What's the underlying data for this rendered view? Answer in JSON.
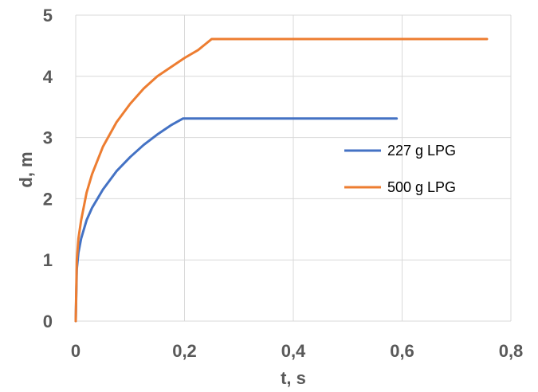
{
  "chart_data": {
    "type": "line",
    "xlabel": "t, s",
    "ylabel": "d, m",
    "xlim": [
      0,
      0.8
    ],
    "ylim": [
      0,
      5
    ],
    "x_ticks": [
      "0",
      "0,2",
      "0,4",
      "0,6",
      "0,8"
    ],
    "y_ticks": [
      "0",
      "1",
      "2",
      "3",
      "4",
      "5"
    ],
    "grid": true,
    "legend_position": "right",
    "series": [
      {
        "name": "227 g LPG",
        "color": "#4472c4",
        "x": [
          0,
          0.002,
          0.005,
          0.01,
          0.02,
          0.03,
          0.05,
          0.075,
          0.1,
          0.125,
          0.15,
          0.175,
          0.197,
          0.25,
          0.35,
          0.45,
          0.59
        ],
        "y": [
          0,
          0.85,
          1.12,
          1.35,
          1.65,
          1.85,
          2.15,
          2.45,
          2.68,
          2.88,
          3.05,
          3.2,
          3.31,
          3.31,
          3.31,
          3.31,
          3.31
        ]
      },
      {
        "name": "500 g LPG",
        "color": "#ed7d31",
        "x": [
          0,
          0.002,
          0.005,
          0.01,
          0.02,
          0.03,
          0.05,
          0.075,
          0.1,
          0.125,
          0.15,
          0.175,
          0.2,
          0.225,
          0.25,
          0.35,
          0.5,
          0.65,
          0.756
        ],
        "y": [
          0,
          1.0,
          1.35,
          1.65,
          2.1,
          2.4,
          2.85,
          3.25,
          3.55,
          3.8,
          4.0,
          4.15,
          4.3,
          4.43,
          4.61,
          4.61,
          4.61,
          4.61,
          4.61
        ]
      }
    ]
  }
}
